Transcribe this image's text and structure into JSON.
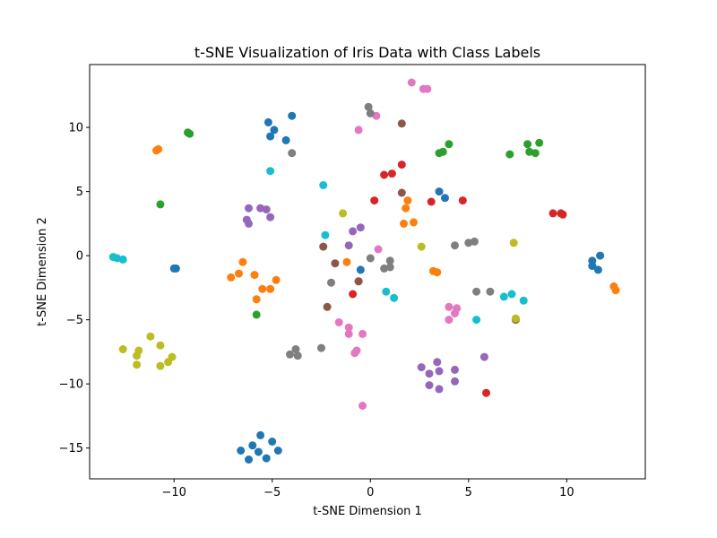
{
  "chart_data": {
    "type": "scatter",
    "title": "t-SNE Visualization of Iris Data with Class Labels",
    "xlabel": "t-SNE Dimension 1",
    "ylabel": "t-SNE Dimension 2",
    "xlim": [
      -14.3,
      14.0
    ],
    "ylim": [
      -17.4,
      14.9
    ],
    "xticks": [
      -10,
      -5,
      0,
      5,
      10
    ],
    "yticks": [
      -15,
      -10,
      -5,
      0,
      5,
      10
    ],
    "xtick_labels": [
      "−10",
      "−5",
      "0",
      "5",
      "10"
    ],
    "ytick_labels": [
      "−15",
      "−10",
      "−5",
      "0",
      "5",
      "10"
    ],
    "grid": false,
    "series": [
      {
        "color": "#1f77b4",
        "points": [
          [
            -5.2,
            10.4
          ],
          [
            -4.0,
            10.9
          ],
          [
            -4.9,
            9.8
          ],
          [
            -5.1,
            9.3
          ],
          [
            -4.3,
            9.0
          ],
          [
            -10.0,
            -1.0
          ],
          [
            -9.9,
            -1.0
          ],
          [
            -0.5,
            -1.1
          ],
          [
            3.5,
            5.0
          ],
          [
            3.8,
            4.5
          ],
          [
            11.3,
            -0.4
          ],
          [
            11.7,
            0.0
          ],
          [
            11.3,
            -0.8
          ],
          [
            11.6,
            -1.1
          ],
          [
            -5.6,
            -14.0
          ],
          [
            -5.0,
            -14.5
          ],
          [
            -6.0,
            -14.8
          ],
          [
            -6.6,
            -15.2
          ],
          [
            -5.7,
            -15.3
          ],
          [
            -4.7,
            -15.2
          ],
          [
            -6.2,
            -15.9
          ],
          [
            -5.3,
            -15.8
          ]
        ]
      },
      {
        "color": "#ff7f0e",
        "points": [
          [
            -10.9,
            8.2
          ],
          [
            -10.8,
            8.3
          ],
          [
            -6.5,
            -0.5
          ],
          [
            -6.7,
            -1.4
          ],
          [
            -5.9,
            -1.5
          ],
          [
            -7.1,
            -1.7
          ],
          [
            -4.8,
            -1.9
          ],
          [
            -5.5,
            -2.6
          ],
          [
            -5.1,
            -2.6
          ],
          [
            -5.8,
            -3.4
          ],
          [
            -1.2,
            -0.5
          ],
          [
            1.9,
            4.3
          ],
          [
            1.8,
            3.7
          ],
          [
            2.2,
            2.6
          ],
          [
            1.7,
            2.5
          ],
          [
            3.2,
            -1.2
          ],
          [
            3.4,
            -1.3
          ],
          [
            12.4,
            -2.4
          ],
          [
            12.5,
            -2.7
          ]
        ]
      },
      {
        "color": "#2ca02c",
        "points": [
          [
            -9.3,
            9.6
          ],
          [
            -9.2,
            9.5
          ],
          [
            -10.7,
            4.0
          ],
          [
            -5.8,
            -4.6
          ],
          [
            4.0,
            8.7
          ],
          [
            3.5,
            8.0
          ],
          [
            3.7,
            8.1
          ],
          [
            7.1,
            7.9
          ],
          [
            8.0,
            8.7
          ],
          [
            8.1,
            8.1
          ],
          [
            8.4,
            8.0
          ],
          [
            8.6,
            8.8
          ]
        ]
      },
      {
        "color": "#d62728",
        "points": [
          [
            1.6,
            7.1
          ],
          [
            0.7,
            6.3
          ],
          [
            1.1,
            6.4
          ],
          [
            0.2,
            4.3
          ],
          [
            3.1,
            4.2
          ],
          [
            4.7,
            4.3
          ],
          [
            9.3,
            3.3
          ],
          [
            9.7,
            3.3
          ],
          [
            9.8,
            3.2
          ],
          [
            -0.9,
            -3.0
          ],
          [
            -0.6,
            -2.0
          ],
          [
            5.9,
            -10.7
          ]
        ]
      },
      {
        "color": "#9467bd",
        "points": [
          [
            -6.2,
            3.7
          ],
          [
            -5.6,
            3.7
          ],
          [
            -5.3,
            3.6
          ],
          [
            -5.1,
            3.0
          ],
          [
            -6.3,
            2.8
          ],
          [
            -6.2,
            2.5
          ],
          [
            -0.5,
            2.2
          ],
          [
            -0.9,
            1.9
          ],
          [
            -1.1,
            0.8
          ],
          [
            2.6,
            -8.7
          ],
          [
            3.0,
            -9.2
          ],
          [
            3.5,
            -9.0
          ],
          [
            3.4,
            -8.3
          ],
          [
            4.3,
            -8.9
          ],
          [
            3.0,
            -10.1
          ],
          [
            3.5,
            -10.4
          ],
          [
            4.3,
            -9.8
          ],
          [
            5.8,
            -7.9
          ]
        ]
      },
      {
        "color": "#8c564b",
        "points": [
          [
            1.6,
            10.3
          ],
          [
            1.6,
            4.9
          ],
          [
            -2.4,
            0.7
          ],
          [
            -1.8,
            -0.6
          ],
          [
            -0.6,
            -2.0
          ],
          [
            -2.2,
            -4.0
          ],
          [
            7.4,
            -5.0
          ]
        ]
      },
      {
        "color": "#e377c2",
        "points": [
          [
            2.1,
            13.5
          ],
          [
            2.7,
            13.0
          ],
          [
            2.9,
            13.0
          ],
          [
            0.3,
            10.9
          ],
          [
            -0.6,
            9.8
          ],
          [
            0.4,
            0.5
          ],
          [
            4.0,
            -4.0
          ],
          [
            4.4,
            -4.1
          ],
          [
            4.3,
            -4.5
          ],
          [
            4.0,
            -5.0
          ],
          [
            -1.6,
            -5.2
          ],
          [
            -1.1,
            -5.6
          ],
          [
            -1.1,
            -6.1
          ],
          [
            -0.4,
            -6.1
          ],
          [
            -0.7,
            -7.4
          ],
          [
            -0.8,
            -7.6
          ],
          [
            -0.4,
            -11.7
          ]
        ]
      },
      {
        "color": "#7f7f7f",
        "points": [
          [
            -0.1,
            11.6
          ],
          [
            0.0,
            11.1
          ],
          [
            -4.0,
            8.0
          ],
          [
            0.0,
            -0.2
          ],
          [
            1.0,
            -0.4
          ],
          [
            0.7,
            -1.0
          ],
          [
            1.0,
            -0.9
          ],
          [
            4.3,
            0.8
          ],
          [
            5.0,
            1.0
          ],
          [
            5.3,
            1.1
          ],
          [
            -2.0,
            -2.1
          ],
          [
            5.4,
            -2.8
          ],
          [
            6.1,
            -2.8
          ],
          [
            -3.8,
            -7.3
          ],
          [
            -2.5,
            -7.2
          ],
          [
            -4.1,
            -7.7
          ],
          [
            -3.7,
            -7.8
          ]
        ]
      },
      {
        "color": "#bcbd22",
        "points": [
          [
            -1.4,
            3.3
          ],
          [
            2.6,
            0.7
          ],
          [
            7.3,
            1.0
          ],
          [
            7.4,
            -4.9
          ],
          [
            -11.2,
            -6.3
          ],
          [
            -12.6,
            -7.3
          ],
          [
            -10.7,
            -7.0
          ],
          [
            -11.8,
            -7.4
          ],
          [
            -11.9,
            -7.8
          ],
          [
            -10.1,
            -7.9
          ],
          [
            -10.3,
            -8.3
          ],
          [
            -11.9,
            -8.5
          ],
          [
            -10.7,
            -8.6
          ]
        ]
      },
      {
        "color": "#17becf",
        "points": [
          [
            -5.1,
            6.6
          ],
          [
            -2.4,
            5.5
          ],
          [
            -2.3,
            1.6
          ],
          [
            -13.1,
            -0.1
          ],
          [
            -12.9,
            -0.2
          ],
          [
            -12.6,
            -0.3
          ],
          [
            0.8,
            -2.8
          ],
          [
            1.2,
            -3.3
          ],
          [
            7.2,
            -3.0
          ],
          [
            6.8,
            -3.2
          ],
          [
            7.8,
            -3.5
          ],
          [
            5.4,
            -5.0
          ]
        ]
      }
    ]
  }
}
